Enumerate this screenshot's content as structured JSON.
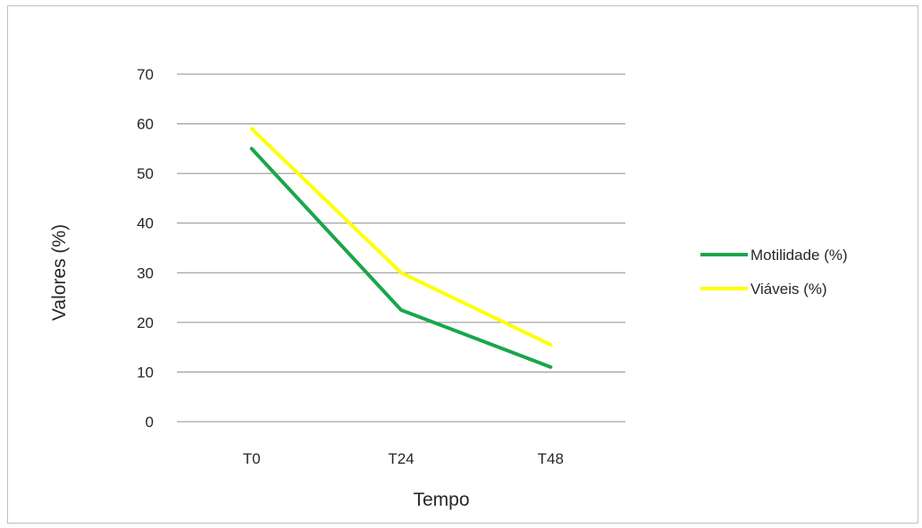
{
  "chart_data": {
    "type": "line",
    "categories": [
      "T0",
      "T24",
      "T48"
    ],
    "series": [
      {
        "name": "Motilidade (%)",
        "values": [
          55,
          22.5,
          11
        ],
        "color": "#1aa64a"
      },
      {
        "name": "Viáveis (%)",
        "values": [
          59,
          30,
          15.5
        ],
        "color": "#ffff00"
      }
    ],
    "title": "",
    "xlabel": "Tempo",
    "ylabel": "Valores (%)",
    "ylim": [
      0,
      70
    ],
    "yticks": [
      0,
      10,
      20,
      30,
      40,
      50,
      60,
      70
    ],
    "grid": true,
    "legend_position": "right"
  },
  "colors": {
    "gridline": "#8c8c8c",
    "axis": "#8c8c8c"
  }
}
